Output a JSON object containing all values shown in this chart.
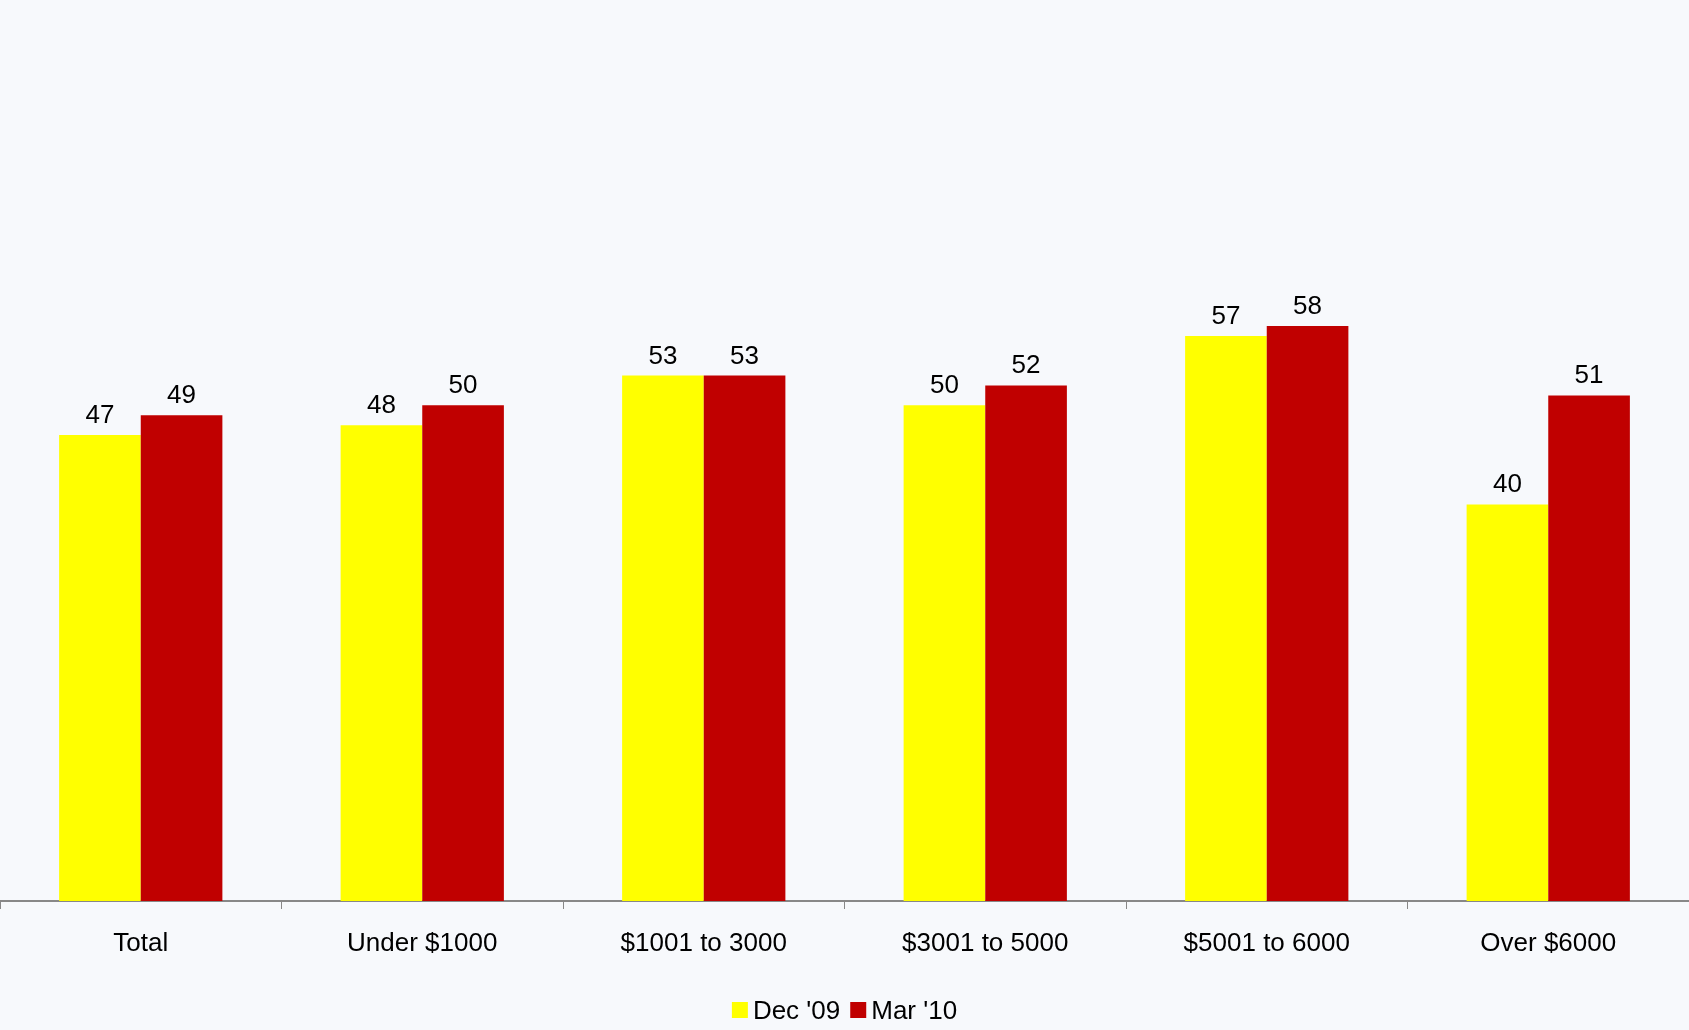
{
  "chart_data": {
    "type": "bar",
    "categories": [
      "Total",
      "Under $1000",
      "$1001 to 3000",
      "$3001 to 5000",
      "$5001 to 6000",
      "Over $6000"
    ],
    "series": [
      {
        "name": "Dec '09",
        "color": "#ffff00",
        "values": [
          47,
          48,
          53,
          50,
          57,
          40
        ]
      },
      {
        "name": "Mar '10",
        "color": "#c00000",
        "values": [
          49,
          50,
          53,
          52,
          58,
          51
        ]
      }
    ],
    "data_labels": true,
    "legend": "bottom",
    "tick_labels": "x"
  }
}
